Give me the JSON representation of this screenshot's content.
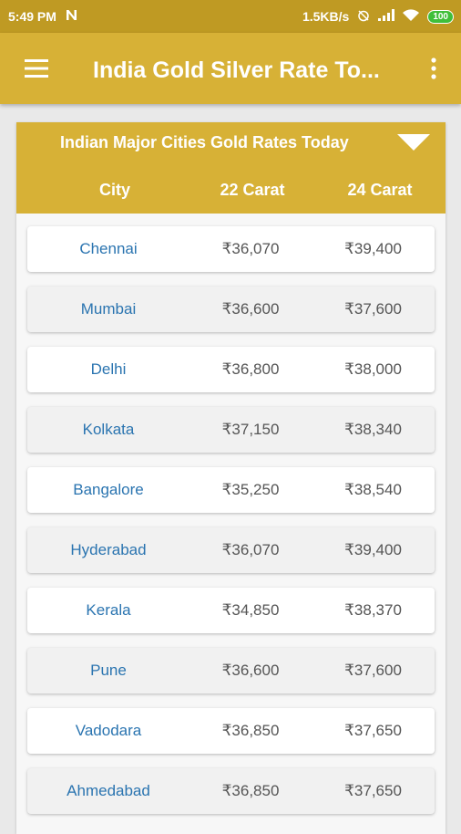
{
  "status_bar": {
    "time": "5:49 PM",
    "network_speed": "1.5KB/s",
    "battery": "100",
    "icons": [
      "n-notification-icon",
      "alarm-off-icon",
      "signal-icon",
      "wifi-icon",
      "battery-icon"
    ]
  },
  "app_bar": {
    "title": "India Gold Silver Rate To...",
    "menu_icon": "hamburger-menu-icon",
    "more_icon": "more-vert-icon"
  },
  "card": {
    "title": "Indian Major Cities Gold Rates Today",
    "dropdown_icon": "caret-down-icon",
    "columns": [
      "City",
      "22 Carat",
      "24 Carat"
    ],
    "rows": [
      {
        "city": "Chennai",
        "k22": "₹36,070",
        "k24": "₹39,400"
      },
      {
        "city": "Mumbai",
        "k22": "₹36,600",
        "k24": "₹37,600"
      },
      {
        "city": "Delhi",
        "k22": "₹36,800",
        "k24": "₹38,000"
      },
      {
        "city": "Kolkata",
        "k22": "₹37,150",
        "k24": "₹38,340"
      },
      {
        "city": "Bangalore",
        "k22": "₹35,250",
        "k24": "₹38,540"
      },
      {
        "city": "Hyderabad",
        "k22": "₹36,070",
        "k24": "₹39,400"
      },
      {
        "city": "Kerala",
        "k22": "₹34,850",
        "k24": "₹38,370"
      },
      {
        "city": "Pune",
        "k22": "₹36,600",
        "k24": "₹37,600"
      },
      {
        "city": "Vadodara",
        "k22": "₹36,850",
        "k24": "₹37,650"
      },
      {
        "city": "Ahmedabad",
        "k22": "₹36,850",
        "k24": "₹37,650"
      }
    ]
  },
  "colors": {
    "status_bar": "#bf9a23",
    "primary": "#d7b136",
    "city_text": "#2a74b0",
    "price_text": "#555555"
  }
}
